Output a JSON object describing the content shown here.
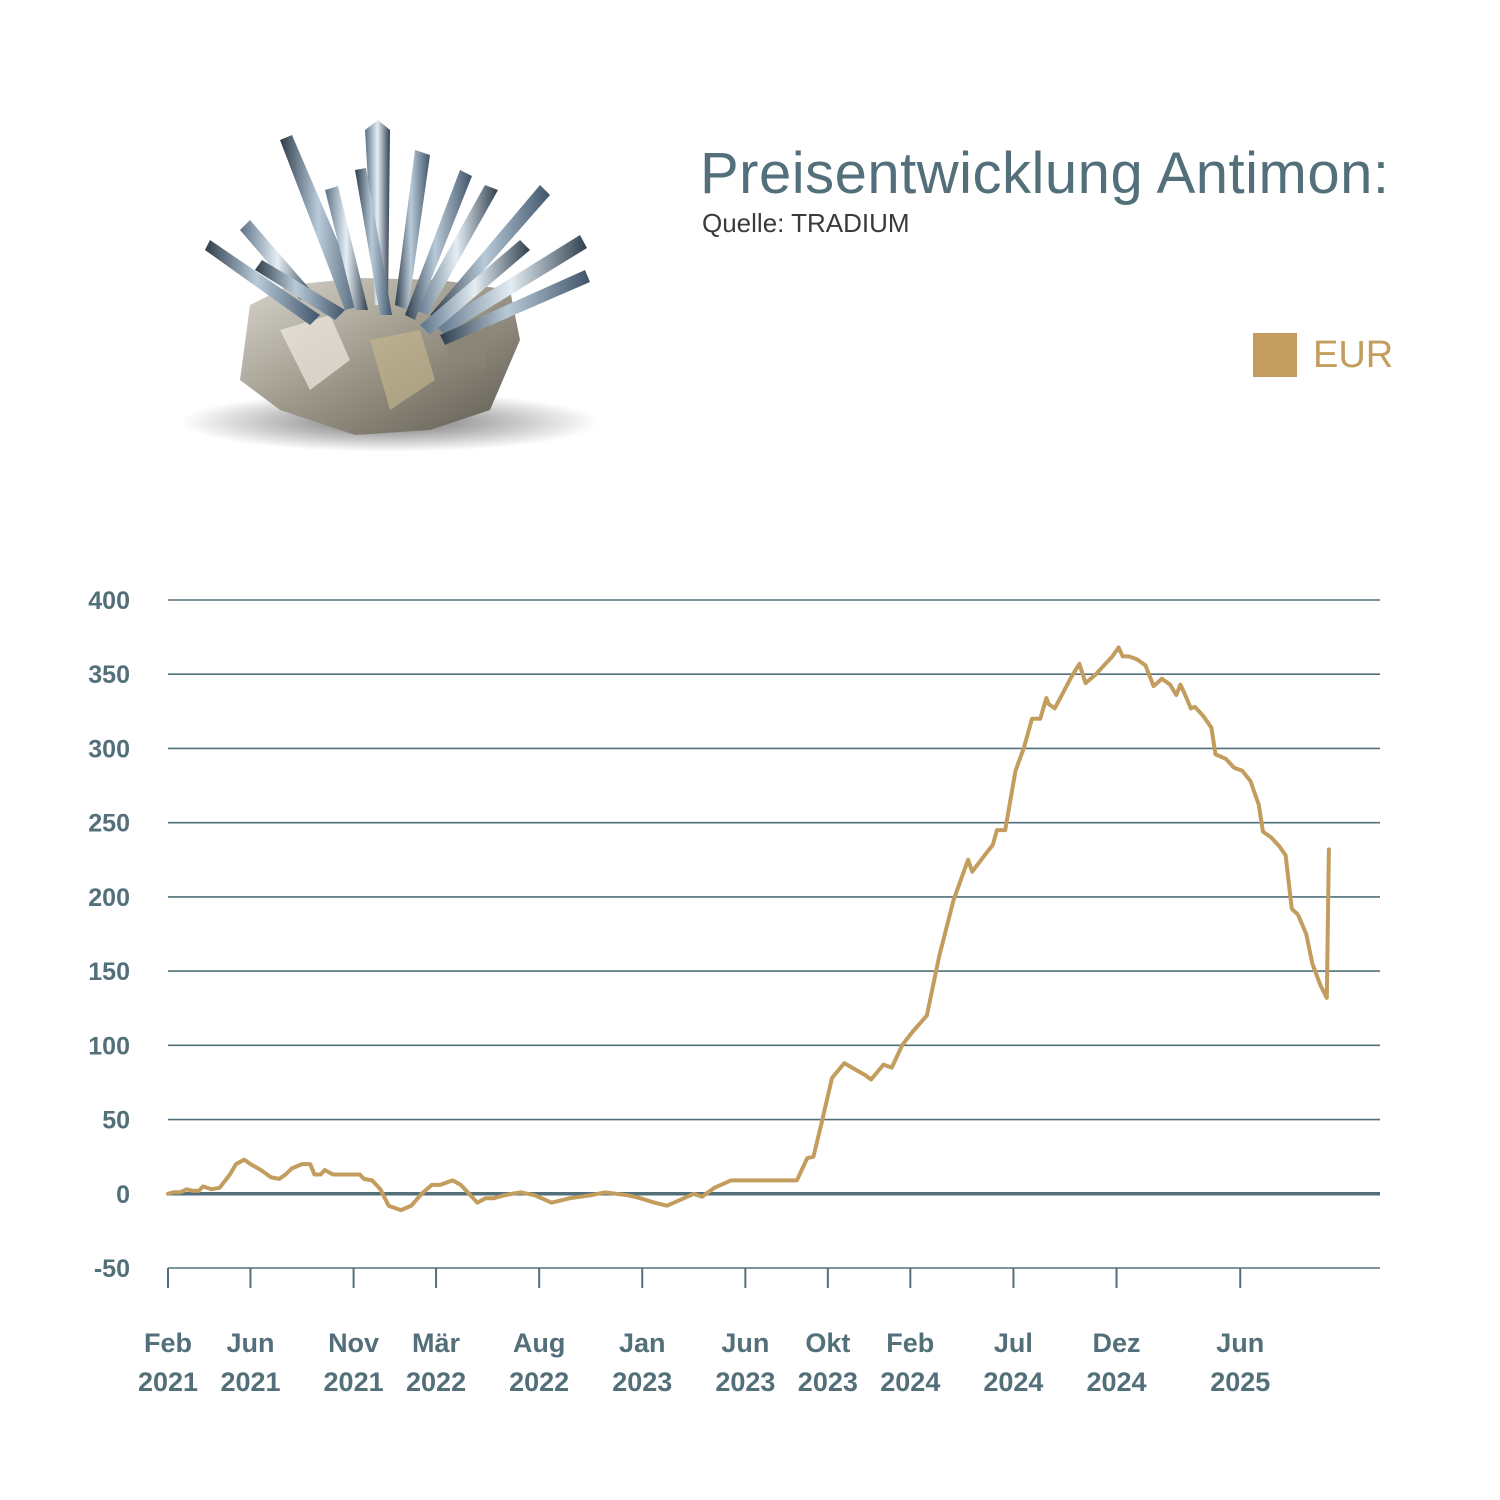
{
  "header": {
    "title": "Preisentwicklung Antimon:",
    "source": "Quelle: TRADIUM"
  },
  "legend": {
    "label": "EUR",
    "color": "#c29d5e"
  },
  "colors": {
    "axis_text": "#53707a",
    "gridline": "#53707a",
    "series": "#c29d5e"
  },
  "chart_data": {
    "type": "line",
    "title": "Preisentwicklung Antimon:",
    "ylim": [
      -50,
      400
    ],
    "yticks": [
      400,
      350,
      300,
      250,
      200,
      150,
      100,
      50,
      0,
      -50
    ],
    "xticks": [
      {
        "x": 0,
        "month": "Feb",
        "year": "2021"
      },
      {
        "x": 4,
        "month": "Jun",
        "year": "2021"
      },
      {
        "x": 9,
        "month": "Nov",
        "year": "2021"
      },
      {
        "x": 13,
        "month": "Mär",
        "year": "2022"
      },
      {
        "x": 18,
        "month": "Aug",
        "year": "2022"
      },
      {
        "x": 23,
        "month": "Jan",
        "year": "2023"
      },
      {
        "x": 28,
        "month": "Jun",
        "year": "2023"
      },
      {
        "x": 32,
        "month": "Okt",
        "year": "2023"
      },
      {
        "x": 36,
        "month": "Feb",
        "year": "2024"
      },
      {
        "x": 41,
        "month": "Jul",
        "year": "2024"
      },
      {
        "x": 46,
        "month": "Dez",
        "year": "2024"
      },
      {
        "x": 52,
        "month": "Jun",
        "year": "2025"
      }
    ],
    "grid": true,
    "legend_position": "top-right",
    "series": [
      {
        "name": "EUR",
        "color": "#c29d5e",
        "points": [
          [
            0.0,
            0
          ],
          [
            0.28,
            1
          ],
          [
            0.6,
            1
          ],
          [
            0.9,
            3
          ],
          [
            1.2,
            2
          ],
          [
            1.5,
            2
          ],
          [
            1.7,
            5
          ],
          [
            2.1,
            3
          ],
          [
            2.5,
            4
          ],
          [
            3.0,
            13
          ],
          [
            3.3,
            20
          ],
          [
            3.7,
            23
          ],
          [
            4.0,
            20
          ],
          [
            4.5,
            16
          ],
          [
            5.0,
            11
          ],
          [
            5.4,
            10
          ],
          [
            5.7,
            13
          ],
          [
            6.0,
            17
          ],
          [
            6.5,
            20
          ],
          [
            6.9,
            20
          ],
          [
            7.1,
            13
          ],
          [
            7.4,
            13
          ],
          [
            7.6,
            16
          ],
          [
            8.0,
            13
          ],
          [
            8.5,
            13
          ],
          [
            9.0,
            13
          ],
          [
            9.3,
            13
          ],
          [
            9.5,
            10
          ],
          [
            9.9,
            9
          ],
          [
            10.3,
            3
          ],
          [
            10.7,
            -8
          ],
          [
            11.3,
            -11
          ],
          [
            11.8,
            -8
          ],
          [
            12.3,
            0
          ],
          [
            12.8,
            6
          ],
          [
            13.2,
            6
          ],
          [
            13.8,
            9
          ],
          [
            14.2,
            6
          ],
          [
            14.6,
            0
          ],
          [
            15.0,
            -6
          ],
          [
            15.4,
            -3
          ],
          [
            15.8,
            -3
          ],
          [
            16.3,
            -1
          ],
          [
            17.1,
            1
          ],
          [
            17.8,
            -1
          ],
          [
            18.6,
            -6
          ],
          [
            19.5,
            -3
          ],
          [
            20.5,
            -1
          ],
          [
            21.2,
            1
          ],
          [
            22.3,
            -1
          ],
          [
            22.9,
            -3
          ],
          [
            23.6,
            -6
          ],
          [
            24.2,
            -8
          ],
          [
            24.7,
            -5
          ],
          [
            25.5,
            0
          ],
          [
            25.9,
            -2
          ],
          [
            26.5,
            4
          ],
          [
            27.3,
            9
          ],
          [
            28.0,
            9
          ],
          [
            29.0,
            9
          ],
          [
            30.0,
            9
          ],
          [
            30.5,
            9
          ],
          [
            31.0,
            24
          ],
          [
            31.3,
            25
          ],
          [
            31.7,
            48
          ],
          [
            32.2,
            78
          ],
          [
            32.8,
            88
          ],
          [
            33.3,
            84
          ],
          [
            33.8,
            80
          ],
          [
            34.1,
            77
          ],
          [
            34.7,
            87
          ],
          [
            35.1,
            85
          ],
          [
            35.6,
            100
          ],
          [
            36.1,
            109
          ],
          [
            36.8,
            120
          ],
          [
            37.4,
            160
          ],
          [
            38.1,
            198
          ],
          [
            38.8,
            225
          ],
          [
            39.0,
            217
          ],
          [
            39.6,
            228
          ],
          [
            40.0,
            235
          ],
          [
            40.2,
            245
          ],
          [
            40.6,
            245
          ],
          [
            41.1,
            285
          ],
          [
            41.5,
            300
          ],
          [
            41.9,
            320
          ],
          [
            42.3,
            320
          ],
          [
            42.6,
            334
          ],
          [
            42.7,
            330
          ],
          [
            43.0,
            327
          ],
          [
            43.5,
            340
          ],
          [
            43.8,
            348
          ],
          [
            44.2,
            357
          ],
          [
            44.5,
            344
          ],
          [
            45.0,
            350
          ],
          [
            45.4,
            356
          ],
          [
            45.8,
            362
          ],
          [
            46.1,
            368
          ],
          [
            46.3,
            362
          ],
          [
            46.6,
            362
          ],
          [
            47.0,
            360
          ],
          [
            47.4,
            356
          ],
          [
            47.8,
            342
          ],
          [
            48.2,
            347
          ],
          [
            48.6,
            343
          ],
          [
            48.9,
            336
          ],
          [
            49.1,
            343
          ],
          [
            49.3,
            337
          ],
          [
            49.6,
            327
          ],
          [
            49.8,
            328
          ],
          [
            50.2,
            322
          ],
          [
            50.6,
            314
          ],
          [
            50.8,
            296
          ],
          [
            51.3,
            293
          ],
          [
            51.7,
            287
          ],
          [
            52.1,
            285
          ],
          [
            52.5,
            278
          ],
          [
            52.9,
            262
          ],
          [
            53.1,
            244
          ],
          [
            53.5,
            240
          ],
          [
            53.9,
            234
          ],
          [
            54.2,
            228
          ],
          [
            54.5,
            192
          ],
          [
            54.8,
            188
          ],
          [
            55.2,
            175
          ],
          [
            55.5,
            155
          ],
          [
            55.9,
            140
          ],
          [
            56.2,
            132
          ],
          [
            56.3,
            232
          ]
        ]
      }
    ]
  }
}
